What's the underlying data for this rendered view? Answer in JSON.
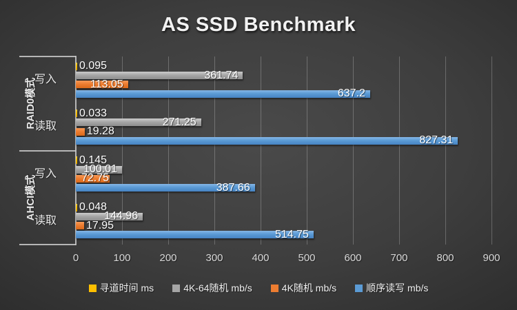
{
  "chart_data": {
    "type": "bar",
    "orientation": "horizontal",
    "title": "AS SSD Benchmark",
    "xlabel": "",
    "ylabel": "",
    "xlim": [
      0,
      900
    ],
    "xticks": [
      0,
      100,
      200,
      300,
      400,
      500,
      600,
      700,
      800,
      900
    ],
    "grid": true,
    "legend_position": "bottom",
    "groups": [
      {
        "label": "RAID0模式",
        "rows": [
          "写入",
          "读取"
        ]
      },
      {
        "label": "AHCI模式",
        "rows": [
          "写入",
          "读取"
        ]
      }
    ],
    "categories": [
      "RAID0模式 写入",
      "RAID0模式 读取",
      "AHCI模式 写入",
      "AHCI模式 读取"
    ],
    "series": [
      {
        "name": "寻道时间 ms",
        "color": "#FFC000",
        "color_top": "#ffd24a",
        "color_bottom": "#dfa700",
        "values": [
          0.095,
          0.033,
          0.145,
          0.048
        ]
      },
      {
        "name": "4K-64随机 mb/s",
        "color": "#A6A6A6",
        "color_top": "#cdcdcd",
        "color_bottom": "#8e8e8e",
        "values": [
          361.74,
          271.25,
          100.01,
          144.96
        ]
      },
      {
        "name": "4K随机 mb/s",
        "color": "#ED7D31",
        "color_top": "#f69a58",
        "color_bottom": "#d9691a",
        "values": [
          113.05,
          19.28,
          72.75,
          17.95
        ]
      },
      {
        "name": "顺序读写 mb/s",
        "color": "#5B9BD5",
        "color_top": "#85b6e6",
        "color_bottom": "#4683c2",
        "values": [
          637.2,
          827.31,
          387.66,
          514.75
        ]
      }
    ]
  },
  "theme": {
    "background_center": "#4a4a4a",
    "background_edge": "#171717",
    "text": "#f2f2f2",
    "gridline": "rgba(255,255,255,0.24)",
    "axis_line": "rgba(205,205,205,0.85)"
  }
}
